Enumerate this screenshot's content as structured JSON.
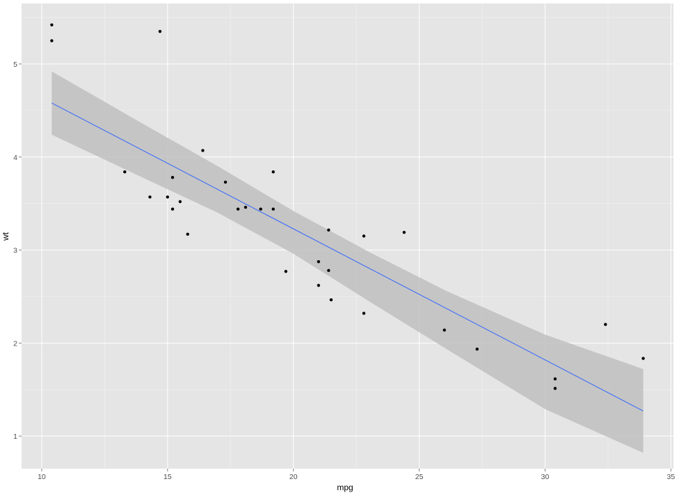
{
  "chart_data": {
    "type": "scatter",
    "title": "",
    "xlabel": "mpg",
    "ylabel": "wt",
    "xlim": [
      9.2,
      35.1
    ],
    "ylim": [
      0.65,
      5.65
    ],
    "x_ticks": [
      10,
      15,
      20,
      25,
      30,
      35
    ],
    "y_ticks": [
      1,
      2,
      3,
      4,
      5
    ],
    "grid": true,
    "colors": {
      "panel": "#e5e5e5",
      "grid_major": "#ffffff",
      "grid_minor": "#f2f2f2",
      "points": "#000000",
      "fit_line": "#3366ff",
      "confidence_band": "#bfbfbf"
    },
    "points": [
      {
        "x": 10.4,
        "y": 5.42
      },
      {
        "x": 10.4,
        "y": 5.25
      },
      {
        "x": 14.7,
        "y": 5.35
      },
      {
        "x": 13.3,
        "y": 3.84
      },
      {
        "x": 14.3,
        "y": 3.57
      },
      {
        "x": 15.0,
        "y": 3.57
      },
      {
        "x": 15.2,
        "y": 3.78
      },
      {
        "x": 15.2,
        "y": 3.44
      },
      {
        "x": 15.5,
        "y": 3.52
      },
      {
        "x": 15.8,
        "y": 3.17
      },
      {
        "x": 16.4,
        "y": 4.07
      },
      {
        "x": 17.3,
        "y": 3.73
      },
      {
        "x": 17.8,
        "y": 3.44
      },
      {
        "x": 18.1,
        "y": 3.46
      },
      {
        "x": 18.7,
        "y": 3.44
      },
      {
        "x": 19.2,
        "y": 3.84
      },
      {
        "x": 19.2,
        "y": 3.44
      },
      {
        "x": 19.7,
        "y": 2.77
      },
      {
        "x": 21.0,
        "y": 2.62
      },
      {
        "x": 21.0,
        "y": 2.875
      },
      {
        "x": 21.4,
        "y": 3.215
      },
      {
        "x": 21.4,
        "y": 2.78
      },
      {
        "x": 21.5,
        "y": 2.465
      },
      {
        "x": 22.8,
        "y": 3.15
      },
      {
        "x": 22.8,
        "y": 2.32
      },
      {
        "x": 24.4,
        "y": 3.19
      },
      {
        "x": 26.0,
        "y": 2.14
      },
      {
        "x": 27.3,
        "y": 1.935
      },
      {
        "x": 30.4,
        "y": 1.615
      },
      {
        "x": 30.4,
        "y": 1.513
      },
      {
        "x": 32.4,
        "y": 2.2
      },
      {
        "x": 33.9,
        "y": 1.835
      }
    ],
    "fit_line": {
      "method": "linear",
      "x": [
        10.4,
        33.9
      ],
      "y": [
        4.58,
        1.27
      ]
    },
    "confidence_band": {
      "x": [
        10.4,
        14,
        17,
        20,
        23,
        26,
        30,
        33.9
      ],
      "upper": [
        4.92,
        4.36,
        3.9,
        3.42,
        2.98,
        2.57,
        2.09,
        1.72
      ],
      "lower": [
        4.24,
        3.78,
        3.4,
        2.96,
        2.45,
        1.95,
        1.29,
        0.82
      ]
    }
  }
}
